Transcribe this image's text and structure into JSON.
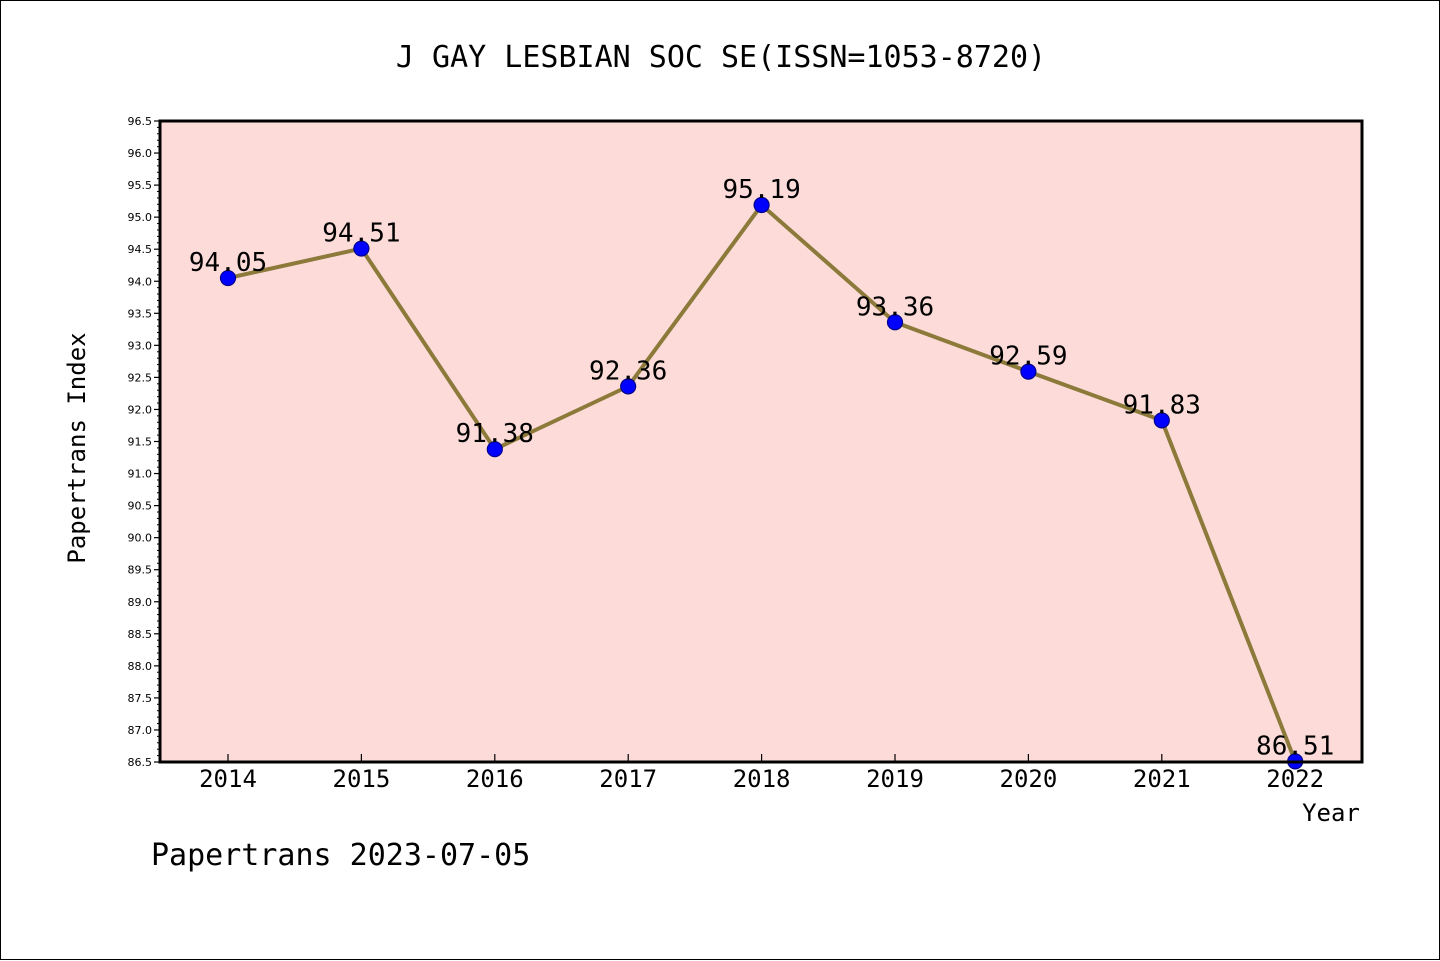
{
  "chart_data": {
    "type": "line",
    "title": "J GAY LESBIAN SOC SE(ISSN=1053-8720)",
    "xlabel": "Year",
    "ylabel": "Papertrans Index",
    "categories": [
      "2014",
      "2015",
      "2016",
      "2017",
      "2018",
      "2019",
      "2020",
      "2021",
      "2022"
    ],
    "values": [
      94.05,
      94.51,
      91.38,
      92.36,
      95.19,
      93.36,
      92.59,
      91.83,
      86.51
    ],
    "data_labels": [
      "94.05",
      "94.51",
      "91.38",
      "92.36",
      "95.19",
      "93.36",
      "92.59",
      "91.83",
      "86.51"
    ],
    "ylim": [
      86.5,
      96.5
    ],
    "y_ticks": [
      "86.5",
      "87.0",
      "87.5",
      "88.0",
      "88.5",
      "89.0",
      "89.5",
      "90.0",
      "90.5",
      "91.0",
      "91.5",
      "92.0",
      "92.5",
      "93.0",
      "93.5",
      "94.0",
      "94.5",
      "95.0",
      "95.5",
      "96.0",
      "96.5"
    ],
    "grid": false,
    "colors": {
      "plot_background": "#fddbd9",
      "line": "#8b7a3a",
      "marker_fill": "#0000ff",
      "marker_edge": "#00008b"
    }
  },
  "footer": {
    "note": "Papertrans 2023-07-05"
  }
}
